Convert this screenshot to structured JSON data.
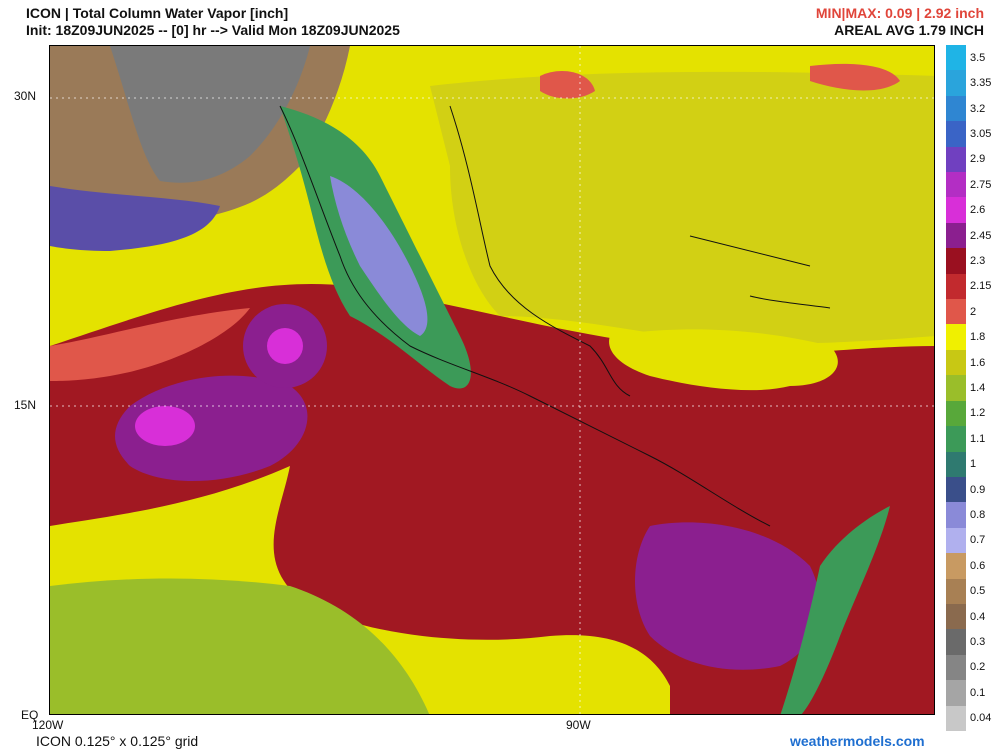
{
  "header": {
    "title": "ICON | Total Column Water Vapor [inch]",
    "init": "Init: 18Z09JUN2025 -- [0] hr --> Valid Mon 18Z09JUN2025",
    "minmax": "MIN|MAX: 0.09 | 2.92 inch",
    "areal_avg": "AREAL AVG 1.79 INCH"
  },
  "axes": {
    "lat_labels": [
      "30N",
      "15N",
      "EQ"
    ],
    "lon_labels": [
      "120W",
      "90W"
    ]
  },
  "colorbar": {
    "labels": [
      "3.5",
      "3.35",
      "3.2",
      "3.05",
      "2.9",
      "2.75",
      "2.6",
      "2.45",
      "2.3",
      "2.15",
      "2",
      "1.8",
      "1.6",
      "1.4",
      "1.2",
      "1.1",
      "1",
      "0.9",
      "0.8",
      "0.7",
      "0.6",
      "0.5",
      "0.4",
      "0.3",
      "0.2",
      "0.1",
      "0.04"
    ],
    "colors": [
      "#1fb4e6",
      "#2aa4dc",
      "#2f86d2",
      "#3a64c6",
      "#7040c0",
      "#b32ec4",
      "#d82fd8",
      "#8b1f8f",
      "#9a1020",
      "#c22a2e",
      "#e0574a",
      "#f0f000",
      "#c8c814",
      "#9abe2a",
      "#58a83a",
      "#3c9a58",
      "#2f7a70",
      "#3a4f8a",
      "#8a8ad8",
      "#b0b0ee",
      "#c89a62",
      "#a88054",
      "#8a6a4e",
      "#6a6a6a",
      "#858585",
      "#a5a5a5",
      "#c8c8c8"
    ]
  },
  "footer": {
    "grid": "ICON 0.125° x 0.125° grid",
    "credit": "weathermodels.com"
  }
}
